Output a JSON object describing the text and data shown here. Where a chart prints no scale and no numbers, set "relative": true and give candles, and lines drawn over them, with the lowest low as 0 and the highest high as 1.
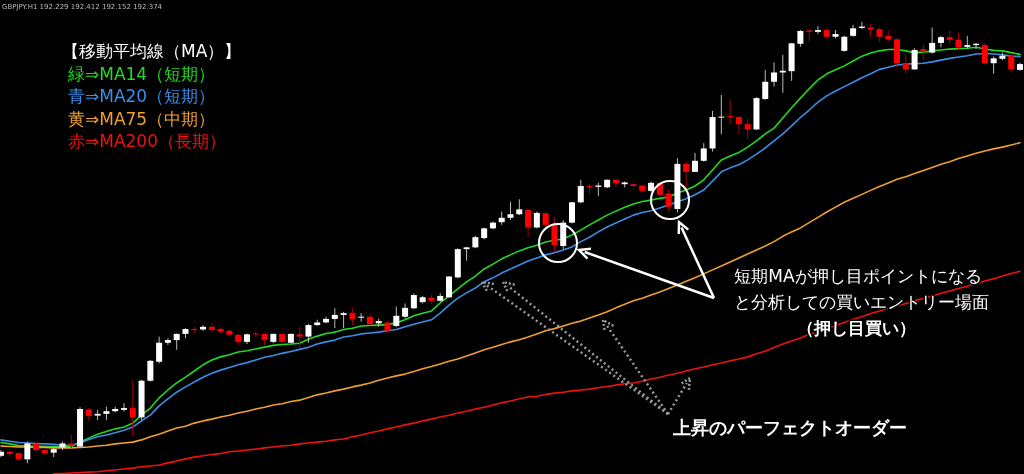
{
  "chart_data": {
    "type": "candlestick",
    "relative": true,
    "categories": [
      null,
      null,
      null,
      null,
      null,
      null,
      null,
      null,
      null,
      null,
      null,
      null,
      null,
      null,
      null,
      null,
      null,
      null,
      null,
      null,
      null,
      null,
      null,
      null,
      null,
      null,
      null,
      null,
      null,
      null,
      null,
      null,
      null,
      null,
      null,
      null,
      null,
      null,
      null,
      null,
      null,
      null,
      null,
      null,
      null,
      null,
      null,
      null,
      null,
      null,
      null,
      null,
      null,
      null,
      null,
      null,
      null,
      null,
      null,
      null,
      null,
      null,
      null,
      null,
      null,
      null,
      null,
      null,
      null,
      null,
      null,
      null,
      null,
      null,
      null,
      null,
      null,
      null,
      null,
      null,
      null,
      null,
      null,
      null,
      null,
      null,
      null,
      null,
      null,
      null,
      null,
      null,
      null,
      null,
      null,
      null,
      null,
      null,
      null,
      null,
      null,
      null,
      null,
      null,
      null,
      null,
      null,
      null,
      null,
      null,
      null,
      null,
      null,
      null,
      null,
      null,
      null
    ],
    "ohlc": [
      [
        0.017,
        0.03,
        0.014,
        0.026
      ],
      [
        0.026,
        0.029,
        0.015,
        0.021
      ],
      [
        0.023,
        0.024,
        0.007,
        0.009
      ],
      [
        0.009,
        0.049,
        0,
        0.045
      ],
      [
        0.044,
        0.049,
        0.026,
        0.03
      ],
      [
        0.03,
        0.032,
        0.019,
        0.023
      ],
      [
        0.024,
        0.038,
        0.014,
        0.032
      ],
      [
        0.036,
        0.049,
        0.03,
        0.045
      ],
      [
        0.045,
        0.064,
        0.034,
        0.04
      ],
      [
        0.038,
        0.127,
        0.036,
        0.123
      ],
      [
        0.122,
        0.125,
        0.096,
        0.107
      ],
      [
        0.108,
        0.121,
        0.098,
        0.112
      ],
      [
        0.112,
        0.128,
        0.098,
        0.118
      ],
      [
        0.118,
        0.128,
        0.115,
        0.123
      ],
      [
        0.121,
        0.136,
        0.117,
        0.125
      ],
      [
        0.125,
        0.187,
        0.062,
        0.104
      ],
      [
        0.104,
        0.189,
        0.098,
        0.187
      ],
      [
        0.187,
        0.234,
        0.185,
        0.232
      ],
      [
        0.23,
        0.287,
        0.226,
        0.273
      ],
      [
        0.273,
        0.283,
        0.268,
        0.279
      ],
      [
        0.279,
        0.294,
        0.257,
        0.293
      ],
      [
        0.293,
        0.306,
        0.283,
        0.304
      ],
      [
        0.304,
        0.309,
        0.294,
        0.302
      ],
      [
        0.303,
        0.313,
        0.3,
        0.309
      ],
      [
        0.309,
        0.317,
        0.296,
        0.302
      ],
      [
        0.304,
        0.308,
        0.294,
        0.298
      ],
      [
        0.3,
        0.302,
        0.288,
        0.291
      ],
      [
        0.291,
        0.294,
        0.268,
        0.275
      ],
      [
        0.275,
        0.294,
        0.27,
        0.292
      ],
      [
        0.294,
        0.298,
        0.285,
        0.292
      ],
      [
        0.293,
        0.294,
        0.268,
        0.279
      ],
      [
        0.275,
        0.294,
        0.272,
        0.293
      ],
      [
        0.293,
        0.294,
        0.272,
        0.275
      ],
      [
        0.273,
        0.294,
        0.272,
        0.293
      ],
      [
        0.292,
        0.308,
        0.26,
        0.287
      ],
      [
        0.287,
        0.315,
        0.273,
        0.313
      ],
      [
        0.313,
        0.325,
        0.311,
        0.319
      ],
      [
        0.319,
        0.332,
        0.317,
        0.327
      ],
      [
        0.327,
        0.351,
        0.306,
        0.336
      ],
      [
        0.336,
        0.343,
        0.306,
        0.34
      ],
      [
        0.34,
        0.351,
        0.313,
        0.327
      ],
      [
        0.33,
        0.34,
        0.321,
        0.332
      ],
      [
        0.332,
        0.338,
        0.313,
        0.315
      ],
      [
        0.317,
        0.328,
        0.309,
        0.322
      ],
      [
        0.319,
        0.321,
        0.298,
        0.3
      ],
      [
        0.311,
        0.355,
        0.309,
        0.334
      ],
      [
        0.332,
        0.362,
        0.328,
        0.352
      ],
      [
        0.351,
        0.385,
        0.349,
        0.381
      ],
      [
        0.365,
        0.379,
        0.362,
        0.376
      ],
      [
        0.375,
        0.381,
        0.362,
        0.368
      ],
      [
        0.368,
        0.385,
        0.366,
        0.379
      ],
      [
        0.376,
        0.424,
        0.374,
        0.423
      ],
      [
        0.421,
        0.487,
        0.419,
        0.485
      ],
      [
        0.485,
        0.49,
        0.459,
        0.489
      ],
      [
        0.489,
        0.515,
        0.487,
        0.512
      ],
      [
        0.51,
        0.534,
        0.507,
        0.532
      ],
      [
        0.532,
        0.547,
        0.53,
        0.545
      ],
      [
        0.546,
        0.57,
        0.54,
        0.556
      ],
      [
        0.556,
        0.592,
        0.551,
        0.564
      ],
      [
        0.564,
        0.598,
        0.562,
        0.575
      ],
      [
        0.574,
        0.575,
        0.513,
        0.534
      ],
      [
        0.534,
        0.57,
        0.532,
        0.567
      ],
      [
        0.566,
        0.57,
        0.532,
        0.54
      ],
      [
        0.54,
        0.558,
        0.479,
        0.494
      ],
      [
        0.492,
        0.551,
        0.485,
        0.545
      ],
      [
        0.545,
        0.592,
        0.543,
        0.591
      ],
      [
        0.591,
        0.642,
        0.589,
        0.628
      ],
      [
        0.628,
        0.632,
        0.611,
        0.625
      ],
      [
        0.626,
        0.635,
        0.605,
        0.629
      ],
      [
        0.625,
        0.643,
        0.623,
        0.642
      ],
      [
        0.642,
        0.643,
        0.625,
        0.634
      ],
      [
        0.632,
        0.638,
        0.625,
        0.636
      ],
      [
        0.632,
        0.634,
        0.625,
        0.628
      ],
      [
        0.629,
        0.63,
        0.615,
        0.617
      ],
      [
        0.617,
        0.638,
        0.615,
        0.635
      ],
      [
        0.635,
        0.638,
        0.604,
        0.608
      ],
      [
        0.611,
        0.619,
        0.57,
        0.581
      ],
      [
        0.576,
        0.691,
        0.568,
        0.678
      ],
      [
        0.678,
        0.683,
        0.619,
        0.66
      ],
      [
        0.66,
        0.703,
        0.659,
        0.685
      ],
      [
        0.685,
        0.725,
        0.683,
        0.713
      ],
      [
        0.713,
        0.798,
        0.706,
        0.784
      ],
      [
        0.783,
        0.834,
        0.745,
        0.785
      ],
      [
        0.786,
        0.823,
        0.768,
        0.784
      ],
      [
        0.784,
        0.786,
        0.746,
        0.768
      ],
      [
        0.768,
        0.779,
        0.734,
        0.756
      ],
      [
        0.756,
        0.829,
        0.755,
        0.827
      ],
      [
        0.825,
        0.891,
        0.823,
        0.864
      ],
      [
        0.864,
        0.908,
        0.853,
        0.885
      ],
      [
        0.885,
        0.925,
        0.839,
        0.889
      ],
      [
        0.888,
        0.952,
        0.866,
        0.951
      ],
      [
        0.95,
        0.981,
        0.943,
        0.979
      ],
      [
        0.98,
        0.983,
        0.955,
        0.977
      ],
      [
        0.977,
        0.99,
        0.972,
        0.981
      ],
      [
        0.981,
        0.985,
        0.962,
        0.966
      ],
      [
        0.966,
        0.981,
        0.962,
        0.972
      ],
      [
        0.934,
        0.968,
        0.932,
        0.966
      ],
      [
        0.968,
        0.993,
        0.966,
        0.985
      ],
      [
        0.986,
        1,
        0.983,
        0.989
      ],
      [
        0.987,
        0.996,
        0.966,
        0.983
      ],
      [
        0.983,
        0.987,
        0.955,
        0.966
      ],
      [
        0.968,
        0.98,
        0.955,
        0.96
      ],
      [
        0.96,
        0.962,
        0.897,
        0.906
      ],
      [
        0.906,
        0.925,
        0.883,
        0.892
      ],
      [
        0.892,
        0.94,
        0.891,
        0.936
      ],
      [
        0.938,
        0.947,
        0.913,
        0.932
      ],
      [
        0.93,
        0.987,
        0.928,
        0.952
      ],
      [
        0.952,
        0.968,
        0.942,
        0.965
      ],
      [
        0.965,
        0.98,
        0.951,
        0.959
      ],
      [
        0.959,
        0.975,
        0.938,
        0.942
      ],
      [
        0.943,
        0.968,
        0.94,
        0.947
      ],
      [
        0.947,
        0.952,
        0.938,
        0.95
      ],
      [
        0.947,
        0.951,
        0.904,
        0.906
      ],
      [
        0.906,
        0.921,
        0.882,
        0.917
      ],
      [
        0.916,
        0.93,
        0.913,
        0.923
      ],
      [
        0.923,
        0.928,
        0.885,
        0.892
      ],
      [
        0.891,
        0.907,
        0.889,
        0.904
      ]
    ],
    "series": [
      {
        "name": "緑⇒MA14（短期）",
        "type": "line",
        "color": "#22d922",
        "values": [
          0.047,
          0.044,
          0.04,
          0.039,
          0.039,
          0.038,
          0.038,
          0.038,
          0.038,
          0.048,
          0.057,
          0.066,
          0.072,
          0.078,
          0.082,
          0.091,
          0.109,
          0.125,
          0.148,
          0.166,
          0.182,
          0.195,
          0.209,
          0.223,
          0.234,
          0.241,
          0.246,
          0.252,
          0.255,
          0.259,
          0.263,
          0.267,
          0.269,
          0.27,
          0.272,
          0.281,
          0.288,
          0.294,
          0.297,
          0.303,
          0.306,
          0.311,
          0.312,
          0.313,
          0.314,
          0.318,
          0.325,
          0.334,
          0.34,
          0.345,
          0.363,
          0.379,
          0.395,
          0.411,
          0.424,
          0.44,
          0.451,
          0.463,
          0.472,
          0.481,
          0.488,
          0.494,
          0.501,
          0.505,
          0.508,
          0.517,
          0.528,
          0.54,
          0.551,
          0.562,
          0.571,
          0.58,
          0.587,
          0.593,
          0.596,
          0.6,
          0.603,
          0.612,
          0.619,
          0.628,
          0.642,
          0.664,
          0.687,
          0.696,
          0.704,
          0.716,
          0.73,
          0.746,
          0.759,
          0.782,
          0.805,
          0.827,
          0.848,
          0.868,
          0.882,
          0.891,
          0.9,
          0.911,
          0.922,
          0.929,
          0.934,
          0.937,
          0.937,
          0.934,
          0.93,
          0.931,
          0.934,
          0.936,
          0.938,
          0.939,
          0.94,
          0.942,
          0.938,
          0.935,
          0.934,
          0.93,
          0.926
        ]
      },
      {
        "name": "青⇒MA20（短期）",
        "type": "line",
        "color": "#3a8ee6",
        "values": [
          0.053,
          0.05,
          0.047,
          0.046,
          0.045,
          0.044,
          0.043,
          0.041,
          0.041,
          0.046,
          0.054,
          0.06,
          0.064,
          0.069,
          0.075,
          0.082,
          0.096,
          0.109,
          0.13,
          0.146,
          0.161,
          0.173,
          0.184,
          0.195,
          0.204,
          0.211,
          0.217,
          0.223,
          0.228,
          0.234,
          0.24,
          0.244,
          0.249,
          0.253,
          0.258,
          0.263,
          0.27,
          0.275,
          0.279,
          0.286,
          0.289,
          0.293,
          0.295,
          0.297,
          0.3,
          0.303,
          0.309,
          0.315,
          0.32,
          0.325,
          0.34,
          0.358,
          0.374,
          0.386,
          0.397,
          0.411,
          0.42,
          0.431,
          0.44,
          0.449,
          0.458,
          0.465,
          0.472,
          0.477,
          0.483,
          0.49,
          0.502,
          0.512,
          0.524,
          0.535,
          0.544,
          0.553,
          0.562,
          0.568,
          0.572,
          0.578,
          0.585,
          0.592,
          0.599,
          0.608,
          0.619,
          0.639,
          0.66,
          0.669,
          0.676,
          0.687,
          0.7,
          0.714,
          0.73,
          0.746,
          0.764,
          0.783,
          0.8,
          0.818,
          0.832,
          0.843,
          0.853,
          0.863,
          0.873,
          0.882,
          0.892,
          0.897,
          0.902,
          0.904,
          0.905,
          0.906,
          0.909,
          0.913,
          0.917,
          0.92,
          0.923,
          0.927,
          0.928,
          0.927,
          0.925,
          0.922,
          0.921
        ]
      },
      {
        "name": "黄⇒MA75（中期）",
        "type": "line",
        "color": "#f0a030",
        "values": [
          0.039,
          0.038,
          0.037,
          0.037,
          0.036,
          0.036,
          0.035,
          0.035,
          0.035,
          0.036,
          0.037,
          0.039,
          0.041,
          0.044,
          0.046,
          0.048,
          0.053,
          0.06,
          0.066,
          0.073,
          0.08,
          0.084,
          0.091,
          0.096,
          0.1,
          0.105,
          0.109,
          0.114,
          0.118,
          0.123,
          0.127,
          0.132,
          0.135,
          0.14,
          0.143,
          0.149,
          0.155,
          0.159,
          0.164,
          0.168,
          0.173,
          0.177,
          0.182,
          0.188,
          0.193,
          0.198,
          0.202,
          0.208,
          0.214,
          0.219,
          0.225,
          0.231,
          0.236,
          0.243,
          0.25,
          0.257,
          0.263,
          0.269,
          0.275,
          0.28,
          0.286,
          0.293,
          0.3,
          0.305,
          0.311,
          0.317,
          0.322,
          0.329,
          0.336,
          0.343,
          0.352,
          0.36,
          0.368,
          0.374,
          0.381,
          0.388,
          0.396,
          0.404,
          0.412,
          0.42,
          0.429,
          0.438,
          0.447,
          0.456,
          0.465,
          0.474,
          0.483,
          0.492,
          0.502,
          0.514,
          0.524,
          0.533,
          0.545,
          0.557,
          0.569,
          0.58,
          0.591,
          0.6,
          0.609,
          0.618,
          0.627,
          0.635,
          0.643,
          0.649,
          0.656,
          0.663,
          0.67,
          0.677,
          0.683,
          0.69,
          0.696,
          0.702,
          0.707,
          0.712,
          0.716,
          0.721,
          0.726
        ]
      },
      {
        "name": "赤⇒MA200（長期）",
        "type": "line",
        "color": "#ee1111",
        "values": [
          null,
          null,
          null,
          null,
          null,
          null,
          -0.024,
          -0.023,
          -0.022,
          -0.021,
          -0.02,
          -0.019,
          -0.017,
          -0.015,
          -0.013,
          -0.011,
          -0.008,
          -0.006,
          -0.004,
          0.001,
          0.005,
          0.01,
          0.014,
          0.017,
          0.02,
          0.022,
          0.026,
          0.028,
          0.03,
          0.032,
          0.035,
          0.037,
          0.039,
          0.041,
          0.044,
          0.046,
          0.048,
          0.05,
          0.053,
          0.055,
          0.06,
          0.064,
          0.069,
          0.073,
          0.078,
          0.082,
          0.087,
          0.091,
          0.096,
          0.1,
          0.105,
          0.109,
          0.114,
          0.118,
          0.123,
          0.127,
          0.132,
          0.137,
          0.141,
          0.146,
          0.15,
          0.152,
          0.156,
          0.159,
          0.161,
          0.164,
          0.166,
          0.168,
          0.171,
          0.174,
          0.177,
          0.18,
          0.182,
          0.186,
          0.191,
          0.195,
          0.2,
          0.204,
          0.209,
          0.214,
          0.218,
          0.223,
          0.227,
          0.232,
          0.236,
          0.241,
          0.248,
          0.254,
          0.262,
          0.27,
          0.277,
          0.284,
          0.292,
          0.298,
          0.305,
          0.312,
          0.319,
          0.326,
          0.332,
          0.339,
          0.345,
          0.351,
          0.356,
          0.362,
          0.368,
          0.373,
          0.379,
          0.385,
          0.39,
          0.396,
          0.401,
          0.407,
          0.413,
          0.418,
          0.424,
          0.43,
          0.435
        ]
      }
    ],
    "legend_title": "【移動平均線（MA）】",
    "legend": "top left",
    "annotations": [
      "GBPJPY.H1  192.229 192.412 192.152 192.374",
      "短期MAが押し目ポイントになる",
      "と分析しての買いエントリー場面",
      "（押し目買い）",
      "上昇のパーフェクトオーダー"
    ]
  }
}
